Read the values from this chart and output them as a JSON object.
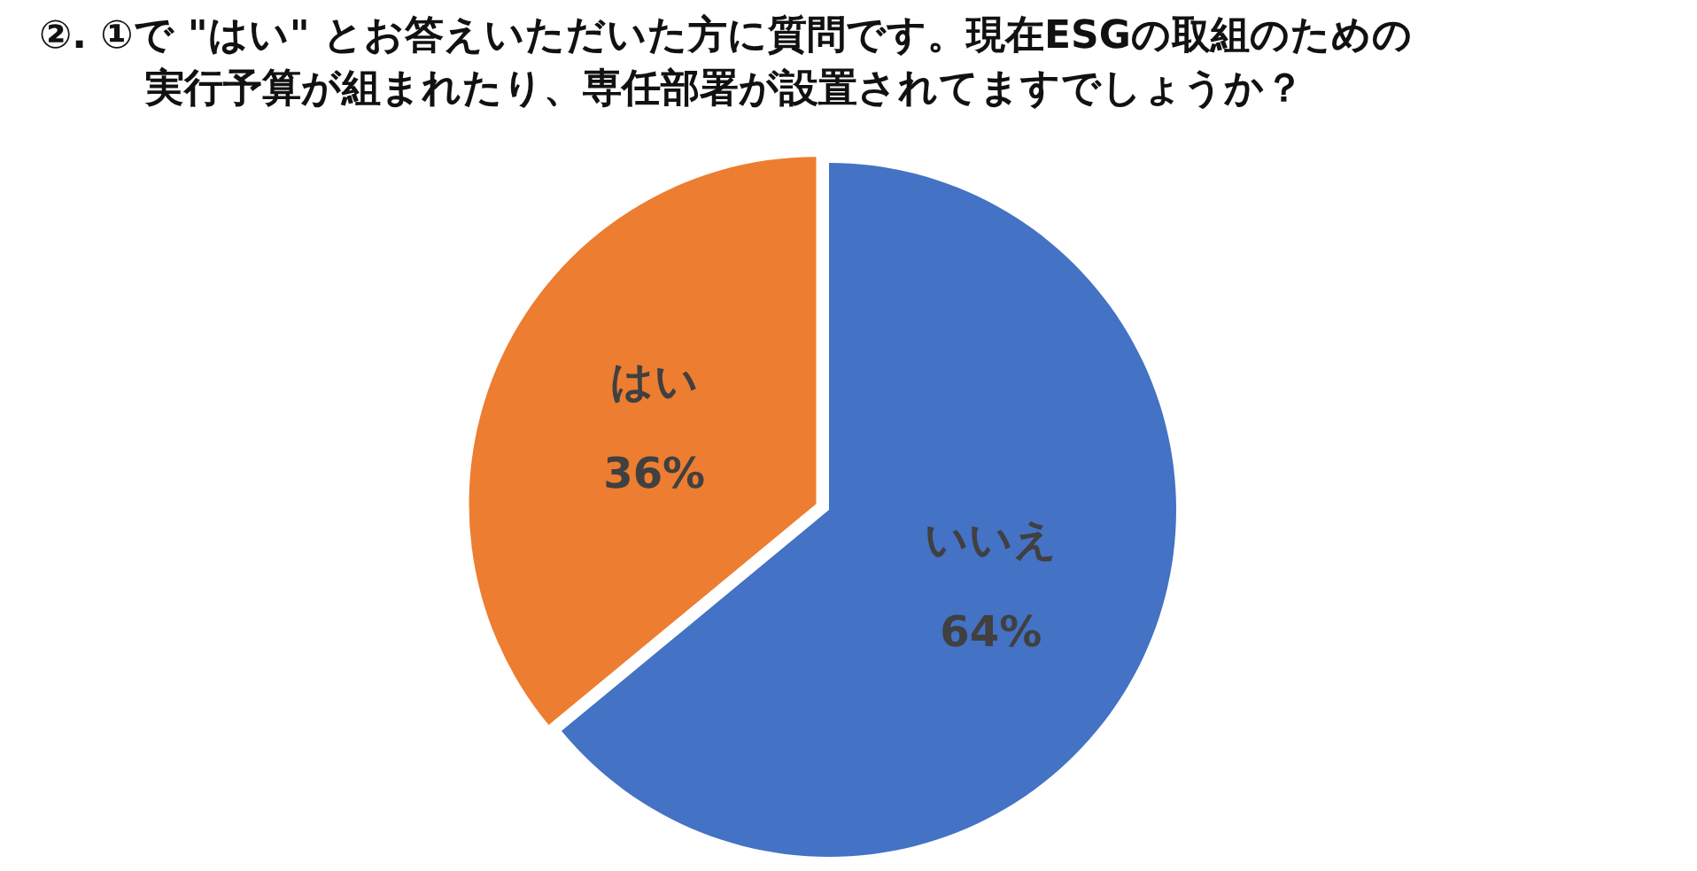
{
  "chart_data": {
    "type": "pie",
    "title": "②. ①で \"はい\" とお答えいただいた方に質問です。現在ESGの取組のための実行予算が組まれたり、専任部署が設置されてますでしょうか？",
    "categories": [
      "いいえ",
      "はい"
    ],
    "values": [
      64,
      36
    ],
    "value_labels": [
      "64%",
      "36%"
    ],
    "colors": [
      "#4472c4",
      "#ed7d31"
    ],
    "legend": false
  }
}
